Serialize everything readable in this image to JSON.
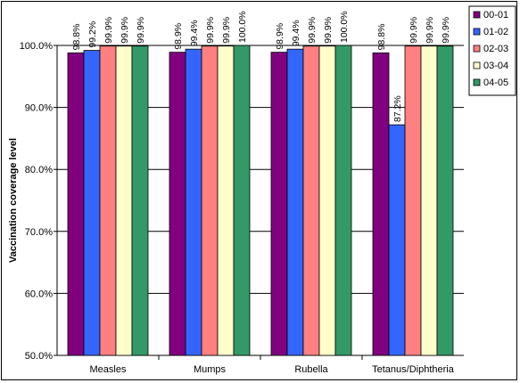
{
  "chart_data": {
    "type": "bar",
    "title": "",
    "xlabel": "",
    "ylabel": "Vaccination coverage level",
    "ylim": [
      50,
      100
    ],
    "y_ticks": [
      "50.0%",
      "60.0%",
      "70.0%",
      "80.0%",
      "90.0%",
      "100.0%"
    ],
    "categories": [
      "Measles",
      "Mumps",
      "Rubella",
      "Tetanus/Diphtheria"
    ],
    "series": [
      {
        "name": "00-01",
        "color": "#800080",
        "values": [
          98.8,
          98.9,
          98.9,
          98.8
        ],
        "labels": [
          "98.8%",
          "98.9%",
          "98.9%",
          "98.8%"
        ]
      },
      {
        "name": "01-02",
        "color": "#3366FF",
        "values": [
          99.2,
          99.4,
          99.4,
          87.2
        ],
        "labels": [
          "99.2%",
          "99.4%",
          "99.4%",
          "87.2%"
        ]
      },
      {
        "name": "02-03",
        "color": "#FF8080",
        "values": [
          99.9,
          99.9,
          99.9,
          99.9
        ],
        "labels": [
          "99.9%",
          "99.9%",
          "99.9%",
          "99.9%"
        ]
      },
      {
        "name": "03-04",
        "color": "#FFFFCC",
        "values": [
          99.9,
          99.9,
          99.9,
          99.9
        ],
        "labels": [
          "99.9%",
          "99.9%",
          "99.9%",
          "99.9%"
        ]
      },
      {
        "name": "04-05",
        "color": "#339966",
        "values": [
          99.9,
          100.0,
          100.0,
          99.9
        ],
        "labels": [
          "99.9%",
          "100.0%",
          "100.0%",
          "99.9%"
        ]
      }
    ],
    "grid": true,
    "legend_position": "top-right"
  }
}
